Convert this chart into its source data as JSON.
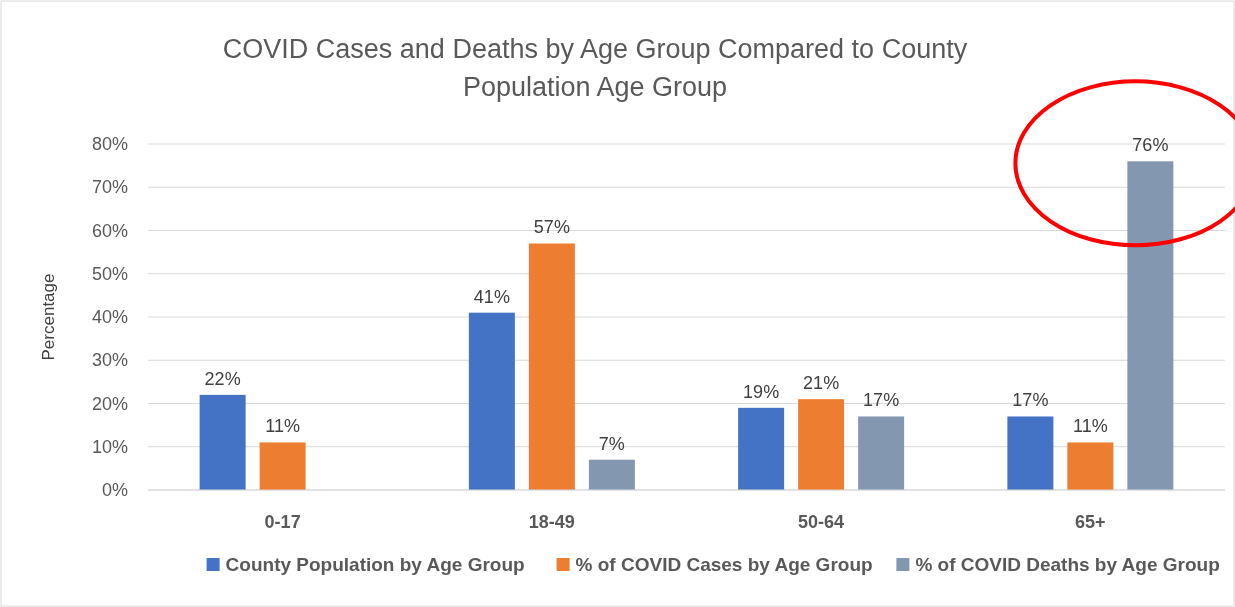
{
  "chart_data": {
    "type": "bar",
    "title": "COVID Cases and Deaths by Age Group Compared to County Population Age Group",
    "ylabel": "Percentage",
    "categories": [
      "0-17",
      "18-49",
      "50-64",
      "65+"
    ],
    "series": [
      {
        "name": "County Population by Age Group",
        "color": "#4472c4",
        "values": [
          22,
          41,
          19,
          17
        ],
        "value_labels": [
          "22%",
          "41%",
          "19%",
          "17%"
        ]
      },
      {
        "name": "% of COVID Cases by Age Group",
        "color": "#ed7d31",
        "values": [
          11,
          57,
          21,
          11
        ],
        "value_labels": [
          "11%",
          "57%",
          "21%",
          "11%"
        ]
      },
      {
        "name": "% of COVID Deaths by Age Group",
        "color": "#8497b0",
        "values": [
          null,
          7,
          17,
          76
        ],
        "value_labels": [
          null,
          "7%",
          "17%",
          "76%"
        ]
      }
    ],
    "ylim": [
      0,
      80
    ],
    "yticks": [
      {
        "value": 0,
        "label": "0%"
      },
      {
        "value": 10,
        "label": "10%"
      },
      {
        "value": 20,
        "label": "20%"
      },
      {
        "value": 30,
        "label": "30%"
      },
      {
        "value": 40,
        "label": "40%"
      },
      {
        "value": 50,
        "label": "50%"
      },
      {
        "value": 60,
        "label": "60%"
      },
      {
        "value": 70,
        "label": "70%"
      },
      {
        "value": 80,
        "label": "80%"
      }
    ],
    "grid": "y",
    "legend": "bottom"
  }
}
